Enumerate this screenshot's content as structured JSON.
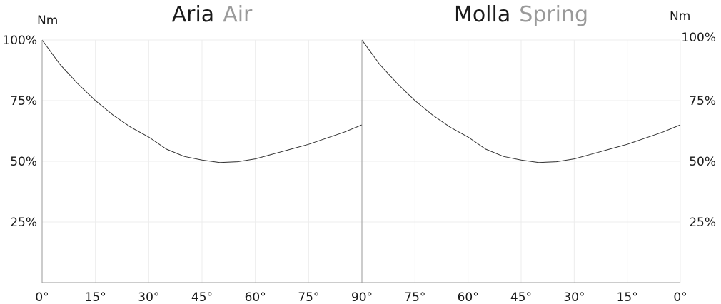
{
  "chart_data": {
    "type": "line",
    "y_unit": "Nm",
    "ylim": [
      0,
      100
    ],
    "y_ticks": [
      "25%",
      "50%",
      "75%",
      "100%"
    ],
    "y_tick_values": [
      25,
      50,
      75,
      100
    ],
    "grid": true,
    "panels": [
      {
        "title_main": "Aria",
        "title_sub": "Air",
        "x_ticks": [
          "0°",
          "15°",
          "30°",
          "45°",
          "60°",
          "75°",
          "90°"
        ],
        "x_tick_values": [
          0,
          15,
          30,
          45,
          60,
          75,
          90
        ],
        "xlim": [
          0,
          90
        ],
        "series": [
          {
            "x": [
              0,
              5,
              10,
              15,
              20,
              25,
              30,
              35,
              40,
              45,
              50,
              55,
              60,
              65,
              70,
              75,
              80,
              85,
              90
            ],
            "y": [
              100,
              90,
              82,
              75,
              69,
              64,
              60,
              55,
              52,
              50.5,
              49.5,
              49.8,
              51,
              53,
              55,
              57,
              59.5,
              62,
              65
            ]
          }
        ]
      },
      {
        "title_main": "Molla",
        "title_sub": "Spring",
        "x_ticks": [
          "90°",
          "75°",
          "60°",
          "45°",
          "30°",
          "15°",
          "0°"
        ],
        "x_tick_values": [
          90,
          75,
          60,
          45,
          30,
          15,
          0
        ],
        "xlim": [
          90,
          0
        ],
        "series": [
          {
            "x": [
              90,
              85,
              80,
              75,
              70,
              65,
              60,
              55,
              50,
              45,
              40,
              35,
              30,
              25,
              20,
              15,
              10,
              5,
              0
            ],
            "y": [
              100,
              90,
              82,
              75,
              69,
              64,
              60,
              55,
              52,
              50.5,
              49.5,
              49.8,
              51,
              53,
              55,
              57,
              59.5,
              62,
              65
            ]
          }
        ]
      }
    ]
  }
}
